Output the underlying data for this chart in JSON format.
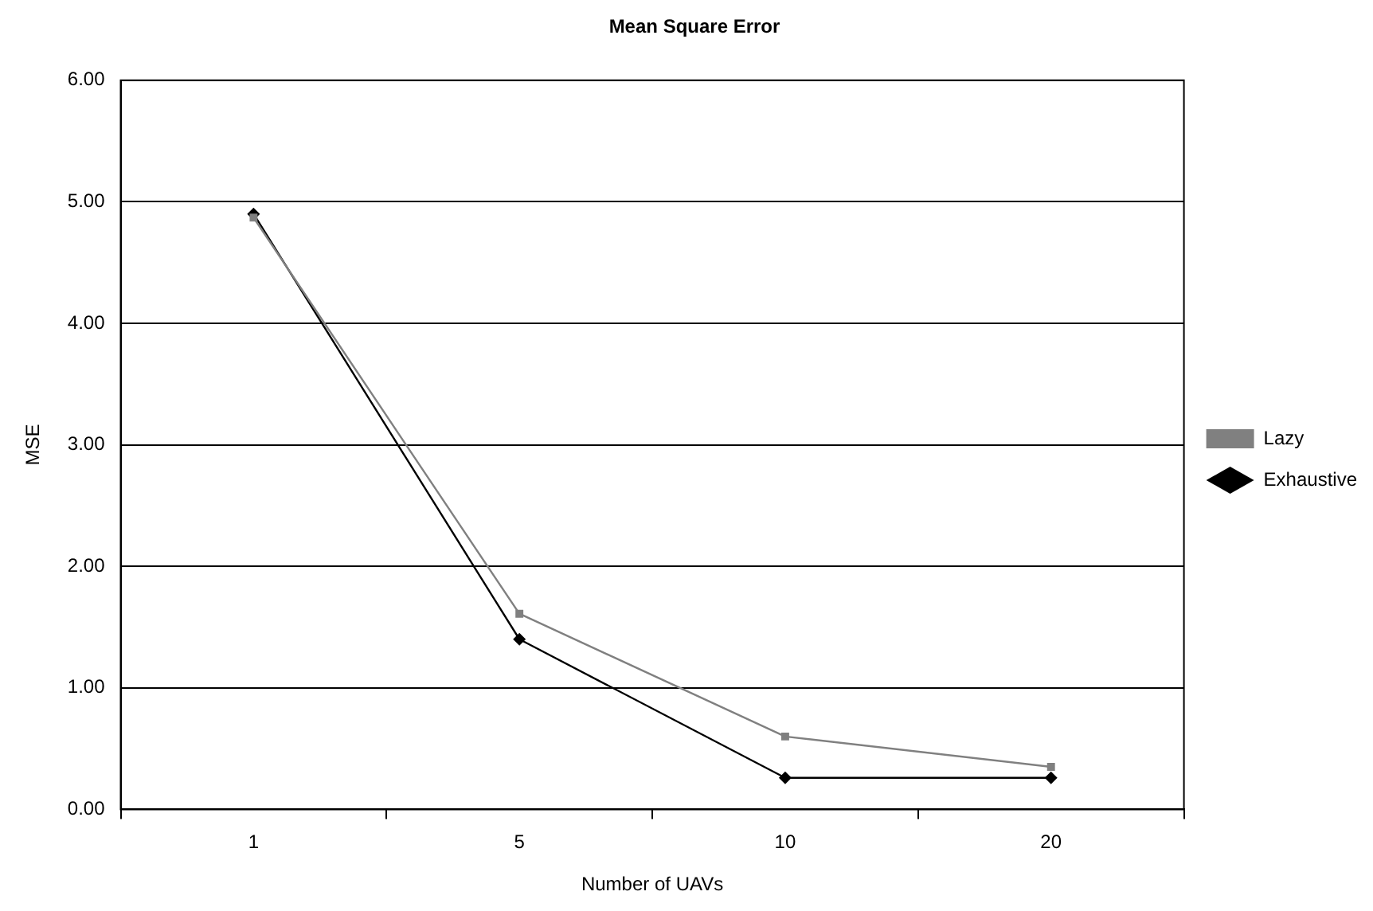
{
  "chart_data": {
    "type": "line",
    "title": "Mean Square Error",
    "xlabel": "Number of UAVs",
    "ylabel": "MSE",
    "categories": [
      "1",
      "5",
      "10",
      "20"
    ],
    "series": [
      {
        "name": "Exhaustive",
        "color": "#000000",
        "marker": "diamond",
        "values": [
          4.9,
          1.4,
          0.26,
          0.26
        ]
      },
      {
        "name": "Lazy",
        "color": "#808080",
        "marker": "square",
        "values": [
          4.87,
          1.61,
          0.6,
          0.35
        ]
      }
    ],
    "ylim": [
      0,
      6
    ],
    "yticks": [
      {
        "value": 0,
        "label": "0.00"
      },
      {
        "value": 1,
        "label": "1.00"
      },
      {
        "value": 2,
        "label": "2.00"
      },
      {
        "value": 3,
        "label": "3.00"
      },
      {
        "value": 4,
        "label": "4.00"
      },
      {
        "value": 5,
        "label": "5.00"
      },
      {
        "value": 6,
        "label": "6.00"
      }
    ],
    "grid": "y",
    "legend": "right",
    "line_style": "solid"
  }
}
